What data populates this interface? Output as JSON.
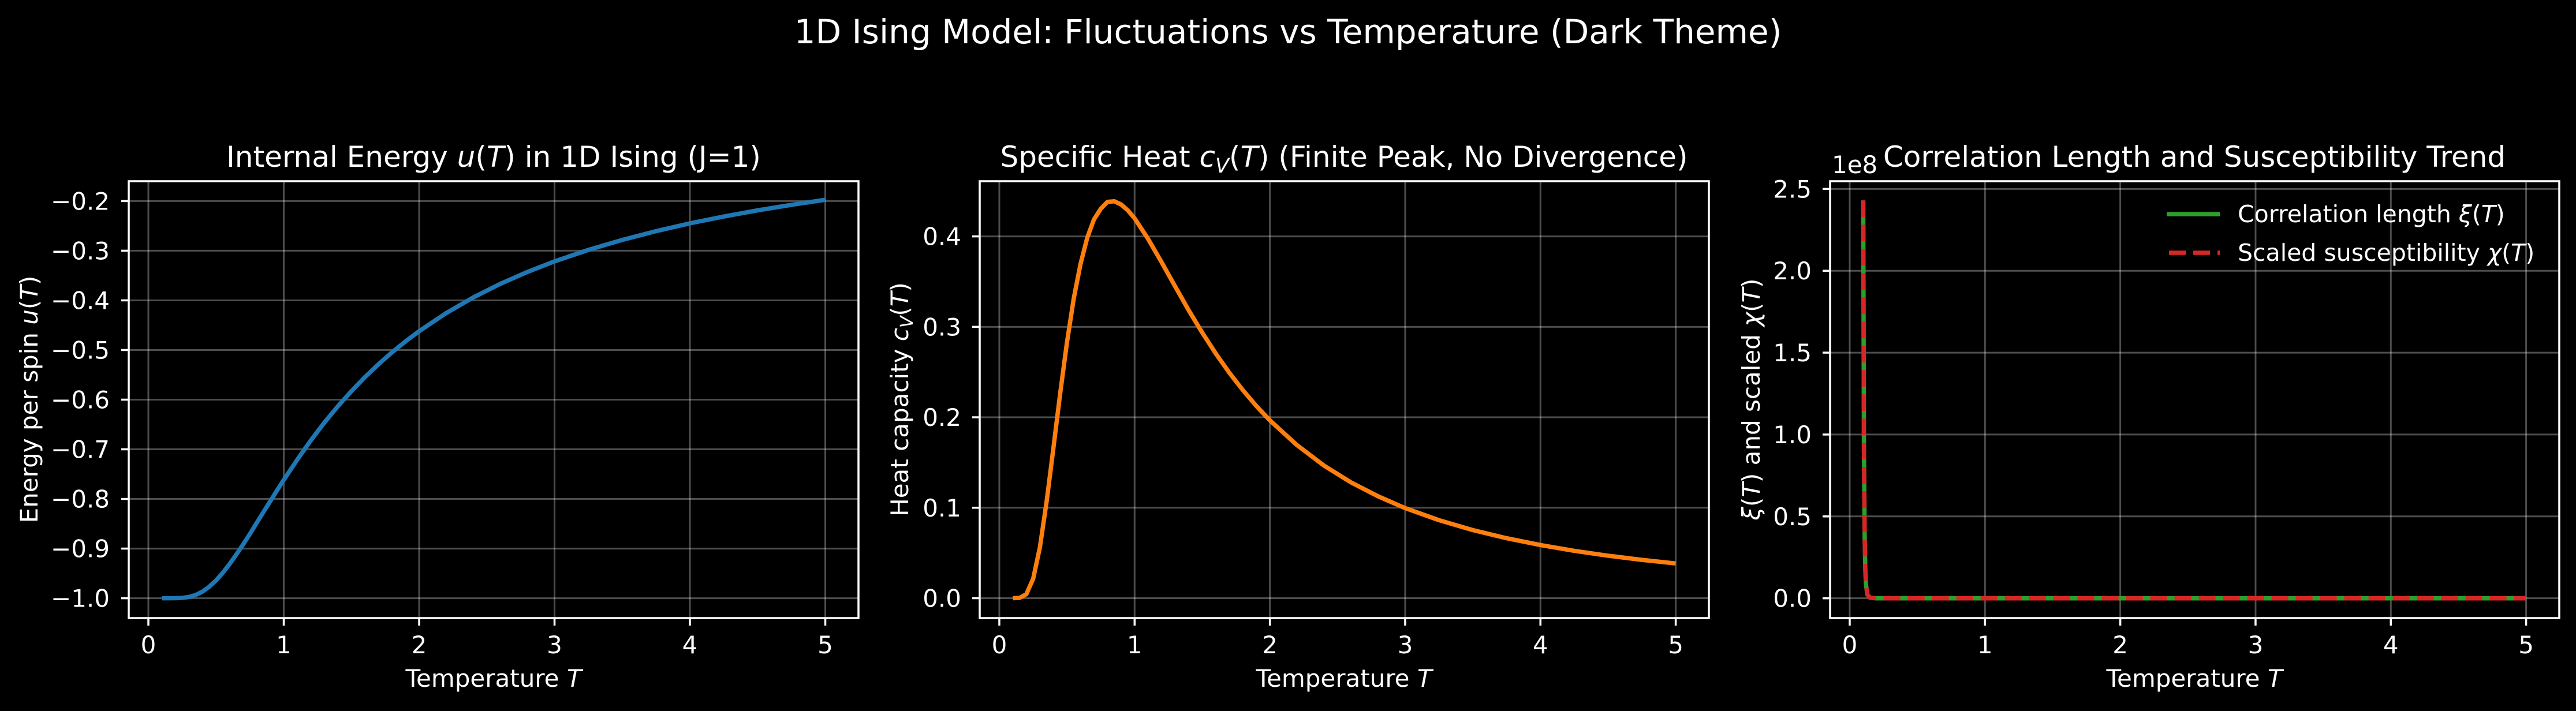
{
  "figure": {
    "suptitle": "1D Ising Model: Fluctuations vs Temperature (Dark Theme)",
    "background": "#000000",
    "foreground": "#ffffff",
    "grid_color": "#ffffff"
  },
  "chart_data": [
    {
      "type": "line",
      "title_parts": {
        "pre": "Internal Energy ",
        "sym": "u",
        "open": "(",
        "var": "T",
        "post": ") in 1D Ising (J=1)"
      },
      "xlabel_parts": {
        "text": "Temperature ",
        "var": "T"
      },
      "ylabel_parts": {
        "text": "Energy per spin ",
        "sym": "u",
        "open": "(",
        "var": "T",
        "close": ")"
      },
      "xlim": [
        -0.145,
        5.245
      ],
      "ylim": [
        -1.04,
        -0.16
      ],
      "xticks": [
        0,
        1,
        2,
        3,
        4,
        5
      ],
      "xtick_labels": [
        "0",
        "1",
        "2",
        "3",
        "4",
        "5"
      ],
      "yticks": [
        -1.0,
        -0.9,
        -0.8,
        -0.7,
        -0.6,
        -0.5,
        -0.4,
        -0.3,
        -0.2
      ],
      "ytick_labels": [
        "−1.0",
        "−0.9",
        "−0.8",
        "−0.7",
        "−0.6",
        "−0.5",
        "−0.4",
        "−0.3",
        "−0.2"
      ],
      "grid": true,
      "series": [
        {
          "color": "#1f77b4",
          "style": "solid",
          "x": [
            0.1,
            0.15,
            0.2,
            0.25,
            0.3,
            0.35,
            0.4,
            0.45,
            0.5,
            0.55,
            0.6,
            0.65,
            0.7,
            0.75,
            0.8,
            0.85,
            0.9,
            0.95,
            1.0,
            1.1,
            1.2,
            1.3,
            1.4,
            1.5,
            1.6,
            1.7,
            1.8,
            1.9,
            2.0,
            2.2,
            2.4,
            2.6,
            2.8,
            3.0,
            3.25,
            3.5,
            3.75,
            4.0,
            4.25,
            4.5,
            4.75,
            5.0
          ],
          "y": [
            -1.0,
            -1.0,
            -0.9999,
            -0.9993,
            -0.9975,
            -0.9934,
            -0.9866,
            -0.9768,
            -0.964,
            -0.9486,
            -0.9311,
            -0.9119,
            -0.8915,
            -0.8705,
            -0.8483,
            -0.8264,
            -0.8046,
            -0.783,
            -0.7616,
            -0.7208,
            -0.6821,
            -0.6462,
            -0.6133,
            -0.5828,
            -0.5546,
            -0.5286,
            -0.5046,
            -0.4825,
            -0.4621,
            -0.4256,
            -0.3941,
            -0.3667,
            -0.3427,
            -0.3215,
            -0.2983,
            -0.2782,
            -0.2606,
            -0.2449,
            -0.2311,
            -0.2187,
            -0.2075,
            -0.1974
          ]
        }
      ]
    },
    {
      "type": "line",
      "title_parts": {
        "pre": "Specific Heat ",
        "sym": "c",
        "sub": "V",
        "open": "(",
        "var": "T",
        "post": ") (Finite Peak, No Divergence)"
      },
      "xlabel_parts": {
        "text": "Temperature ",
        "var": "T"
      },
      "ylabel_parts": {
        "text": "Heat capacity ",
        "sym": "c",
        "sub": "V",
        "open": "(",
        "var": "T",
        "close": ")"
      },
      "xlim": [
        -0.145,
        5.245
      ],
      "ylim": [
        -0.022,
        0.461
      ],
      "xticks": [
        0,
        1,
        2,
        3,
        4,
        5
      ],
      "xtick_labels": [
        "0",
        "1",
        "2",
        "3",
        "4",
        "5"
      ],
      "yticks": [
        0.0,
        0.1,
        0.2,
        0.3,
        0.4
      ],
      "ytick_labels": [
        "0.0",
        "0.1",
        "0.2",
        "0.3",
        "0.4"
      ],
      "grid": true,
      "series": [
        {
          "color": "#ff7f0e",
          "style": "solid",
          "x": [
            0.1,
            0.15,
            0.2,
            0.25,
            0.3,
            0.35,
            0.4,
            0.45,
            0.5,
            0.55,
            0.6,
            0.65,
            0.7,
            0.75,
            0.8,
            0.85,
            0.9,
            0.95,
            1.0,
            1.1,
            1.2,
            1.3,
            1.4,
            1.5,
            1.6,
            1.7,
            1.8,
            1.9,
            2.0,
            2.2,
            2.4,
            2.6,
            2.8,
            3.0,
            3.25,
            3.5,
            3.75,
            4.0,
            4.25,
            4.5,
            4.75,
            5.0
          ],
          "y": [
            0.0,
            0.0003,
            0.0045,
            0.0215,
            0.0564,
            0.1073,
            0.1663,
            0.2265,
            0.2826,
            0.3314,
            0.3695,
            0.3986,
            0.4189,
            0.4305,
            0.4382,
            0.4388,
            0.4353,
            0.4287,
            0.42,
            0.3971,
            0.3713,
            0.3446,
            0.3183,
            0.2935,
            0.2705,
            0.2493,
            0.23,
            0.2125,
            0.1966,
            0.1692,
            0.1466,
            0.128,
            0.1126,
            0.0996,
            0.0863,
            0.0753,
            0.0663,
            0.0588,
            0.0524,
            0.047,
            0.0424,
            0.0384
          ]
        }
      ]
    },
    {
      "type": "line",
      "title": "Correlation Length and Susceptibility Trend",
      "xlabel_parts": {
        "text": "Temperature ",
        "var": "T"
      },
      "ylabel_parts": {
        "sym1": "ξ",
        "open1": "(",
        "var1": "T",
        "mid": ") and scaled ",
        "sym2": "χ",
        "open2": "(",
        "var2": "T",
        "close": ")"
      },
      "y_offset_text": "1e8",
      "xlim": [
        -0.145,
        5.245
      ],
      "ylim": [
        -0.121,
        2.547
      ],
      "xticks": [
        0,
        1,
        2,
        3,
        4,
        5
      ],
      "xtick_labels": [
        "0",
        "1",
        "2",
        "3",
        "4",
        "5"
      ],
      "yticks": [
        0.0,
        0.5,
        1.0,
        1.5,
        2.0,
        2.5
      ],
      "ytick_labels": [
        "0.0",
        "0.5",
        "1.0",
        "1.5",
        "2.0",
        "2.5"
      ],
      "grid": true,
      "legend": {
        "position": "upper right",
        "entries": [
          {
            "pre": "Correlation length ",
            "sym": "ξ",
            "open": "(",
            "var": "T",
            "close": ")",
            "color": "#2ca02c",
            "style": "solid"
          },
          {
            "pre": "Scaled susceptibility ",
            "sym": "χ",
            "open": "(",
            "var": "T",
            "close": ")",
            "color": "#d62728",
            "style": "dashed"
          }
        ]
      },
      "series": [
        {
          "legend_index": 0,
          "color": "#2ca02c",
          "style": "solid",
          "x": [
            0.1,
            0.105,
            0.11,
            0.115,
            0.12,
            0.13,
            0.15,
            0.2,
            0.5,
            1.0,
            2.0,
            3.0,
            4.0,
            5.0
          ],
          "y": [
            2.43,
            0.94,
            0.39,
            0.18,
            0.087,
            0.024,
            0.003,
            0.0,
            0.0,
            0.0,
            0.0,
            0.0,
            0.0,
            0.0
          ]
        },
        {
          "legend_index": 1,
          "color": "#d62728",
          "style": "dashed",
          "x": [
            0.1,
            0.105,
            0.11,
            0.115,
            0.12,
            0.13,
            0.15,
            0.2,
            0.5,
            1.0,
            2.0,
            3.0,
            4.0,
            5.0
          ],
          "y": [
            2.43,
            0.94,
            0.39,
            0.18,
            0.087,
            0.024,
            0.003,
            0.0,
            0.0,
            0.0,
            0.0,
            0.0,
            0.0,
            0.0
          ]
        }
      ]
    }
  ]
}
